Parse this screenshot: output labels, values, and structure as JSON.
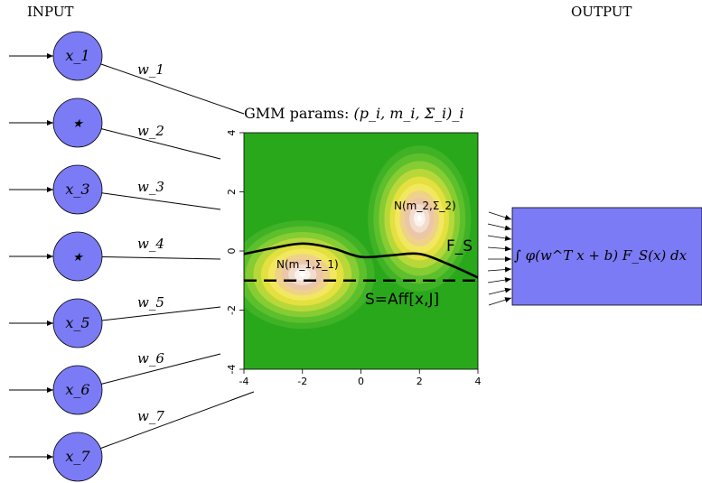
{
  "labels": {
    "input": "INPUT",
    "output": "OUTPUT",
    "gmm_title_prefix": "GMM params: ",
    "gmm_title_math": "(p_i, m_i, Σ_i)_i",
    "curve_label": "F_S",
    "line_label": "S=Aff[x,J]",
    "gauss1_label": "N(m_1,Σ_1)",
    "gauss2_label": "N(m_2,Σ_2)",
    "output_formula": "∫ φ(w^T x + b) F_S(x) dx"
  },
  "inputs": [
    {
      "label": "x_1",
      "weight": "w_1"
    },
    {
      "label": "★",
      "weight": "w_2"
    },
    {
      "label": "x_3",
      "weight": "w_3"
    },
    {
      "label": "★",
      "weight": "w_4"
    },
    {
      "label": "x_5",
      "weight": "w_5"
    },
    {
      "label": "x_6",
      "weight": "w_6"
    },
    {
      "label": "x_7",
      "weight": "w_7"
    }
  ],
  "colors": {
    "node_fill": "#7b7bf5",
    "output_fill": "#7b7bf5",
    "heatmap_bg": "#2aa81c"
  },
  "chart_data": {
    "type": "heatmap",
    "xlim": [
      -4,
      4
    ],
    "ylim": [
      -4,
      4
    ],
    "x_ticks": [
      "-4",
      "-2",
      "0",
      "2",
      "4"
    ],
    "y_ticks": [
      "-4",
      "-2",
      "0",
      "2",
      "4"
    ],
    "gaussians": [
      {
        "name": "N(m_1,Σ_1)",
        "mean": [
          -2,
          -0.8
        ]
      },
      {
        "name": "N(m_2,Σ_2)",
        "mean": [
          2,
          1.1
        ]
      }
    ],
    "curve_FS": {
      "x": [
        -4,
        -3,
        -2,
        -1,
        0,
        1,
        2,
        3,
        4
      ],
      "y": [
        -0.1,
        0.1,
        0.25,
        0.1,
        -0.2,
        -0.15,
        -0.1,
        -0.45,
        -0.9
      ]
    },
    "line_S_y": -1.0
  }
}
